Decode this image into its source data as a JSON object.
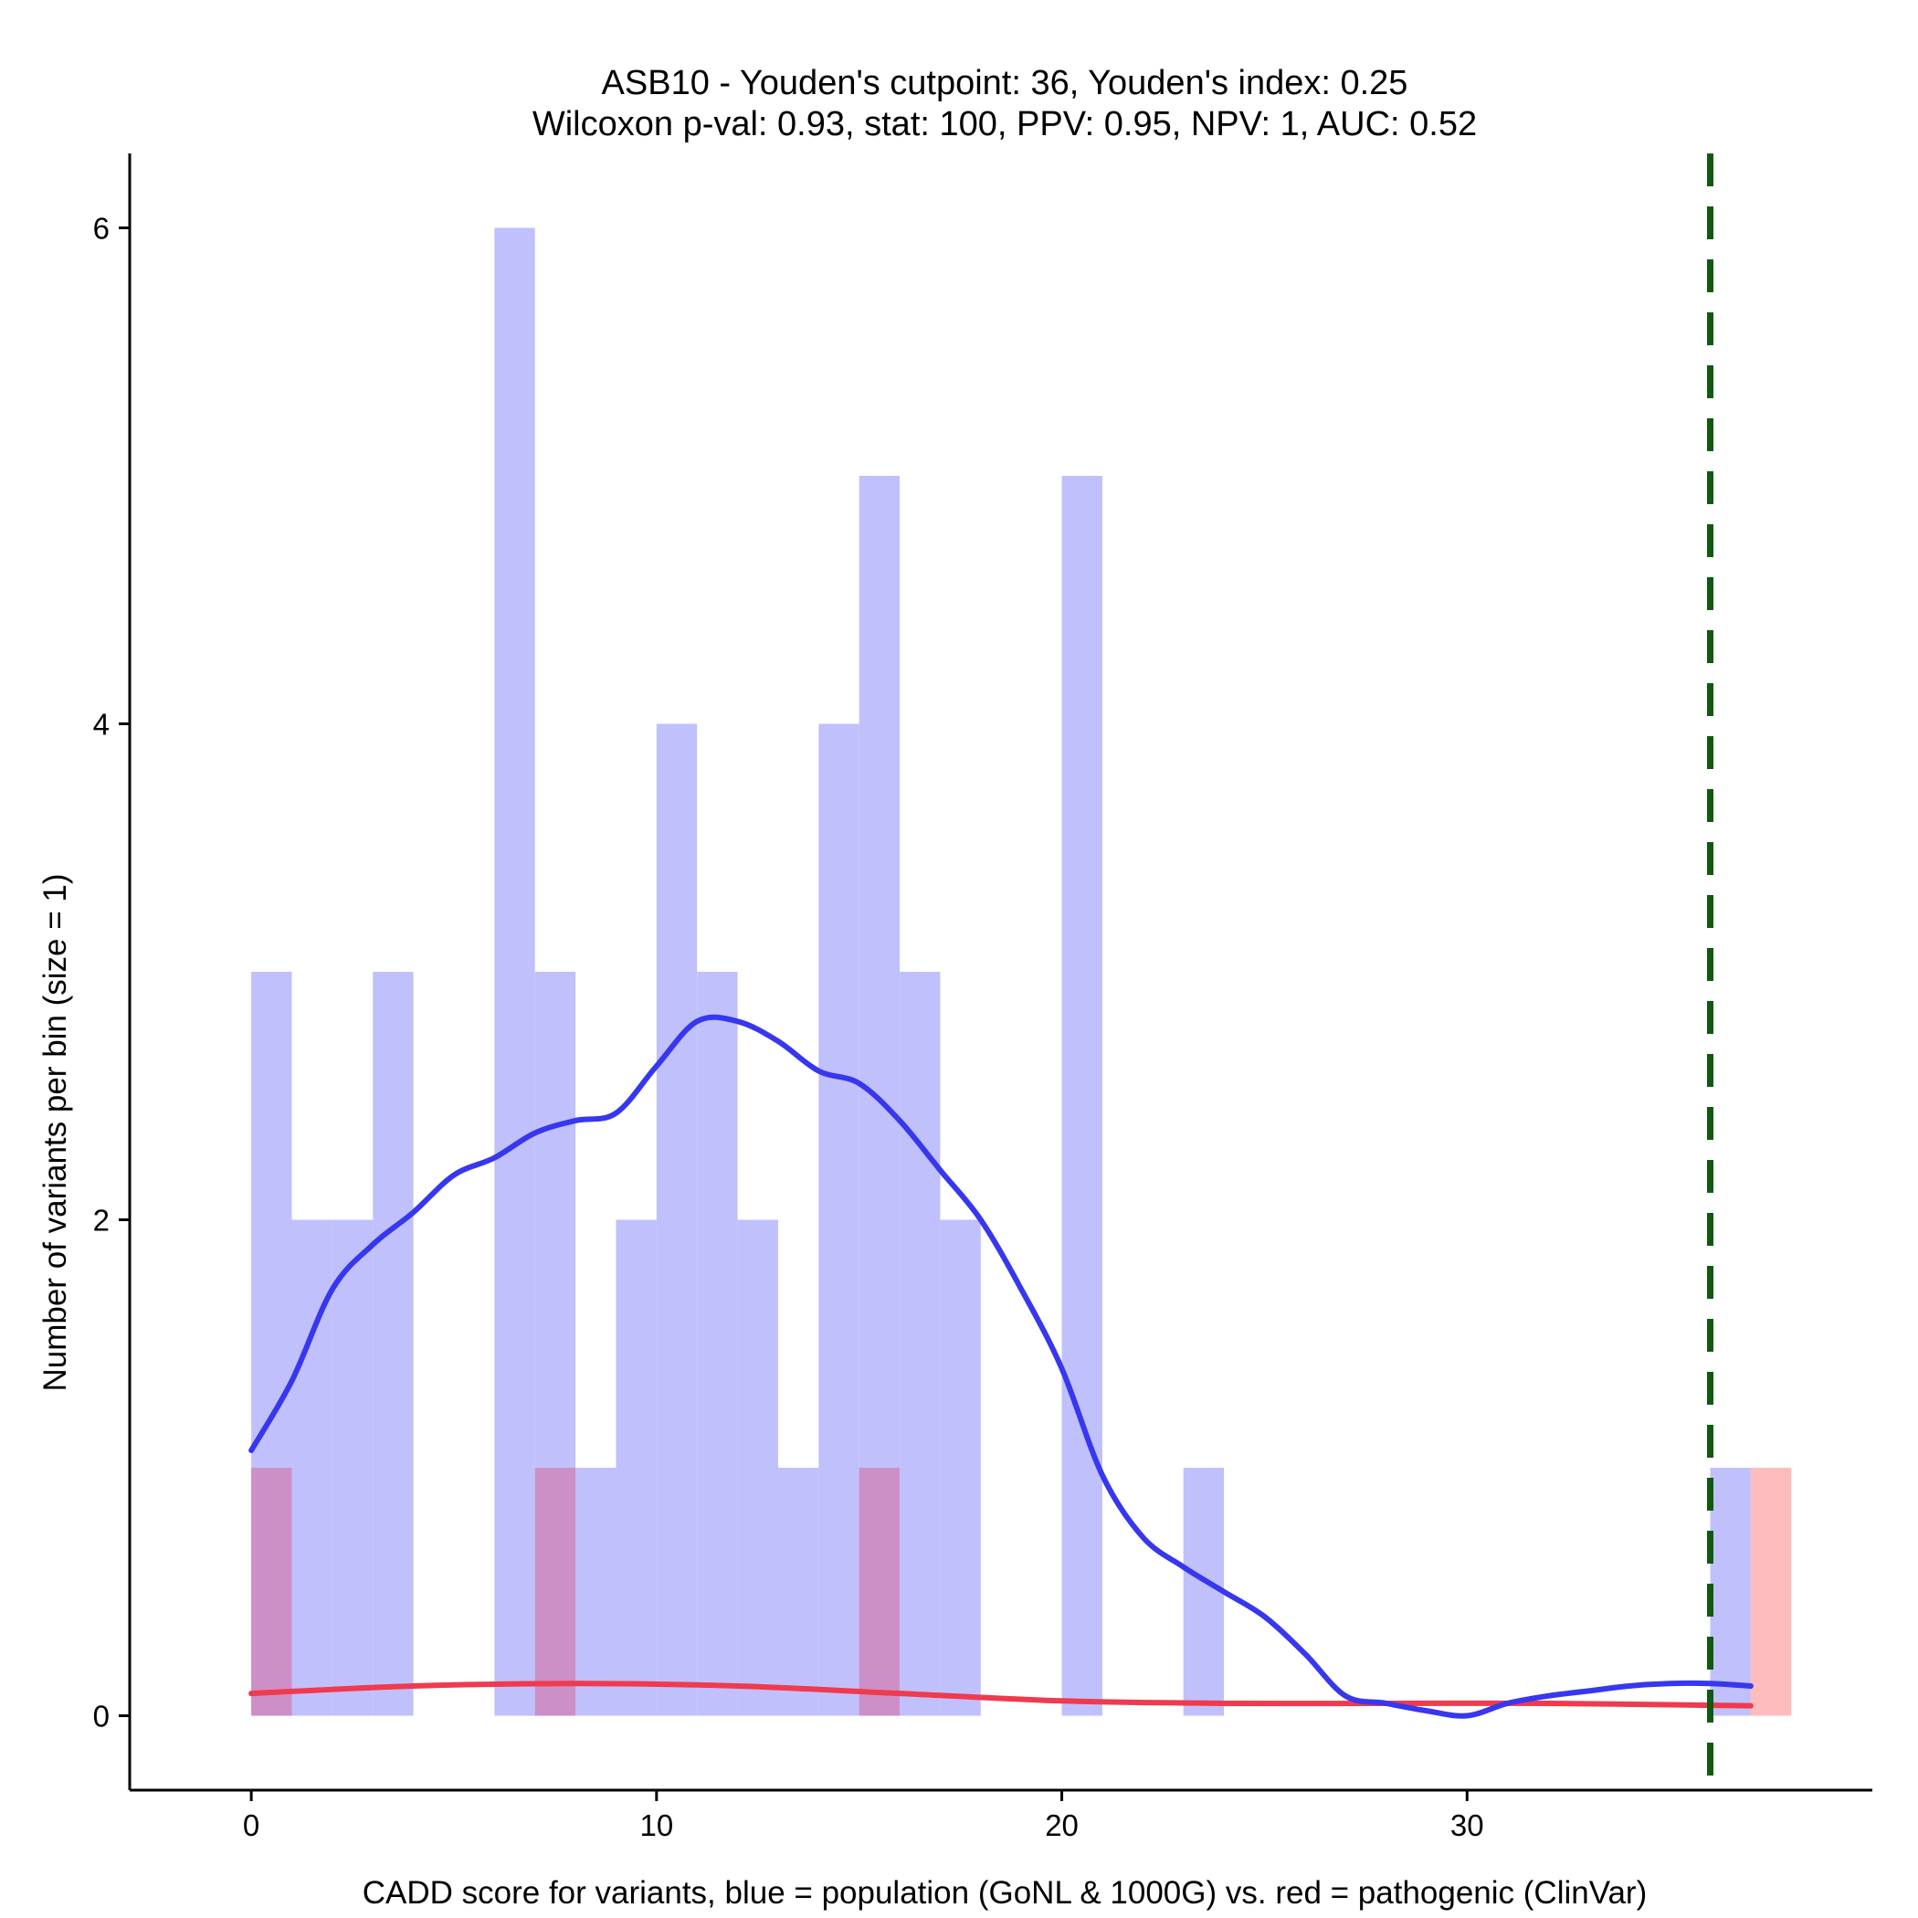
{
  "chart_data": {
    "type": "histogram",
    "title_line1": "ASB10 - Youden's cutpoint: 36, Youden's index: 0.25",
    "title_line2": "Wilcoxon p-val: 0.93, stat: 100, PPV: 0.95, NPV: 1, AUC: 0.52",
    "xlabel": "CADD score for variants, blue = population (GoNL & 1000G) vs. red = pathogenic (ClinVar)",
    "ylabel": "Number of variants per bin (size = 1)",
    "xlim": [
      -3,
      40
    ],
    "ylim": [
      -0.3,
      6.3
    ],
    "x_ticks": [
      0,
      10,
      20,
      30
    ],
    "y_ticks": [
      0,
      2,
      4,
      6
    ],
    "bin_width": 1,
    "cutpoint": 36,
    "colors": {
      "population_bar": "#c0c0fd",
      "pathogenic_bar": "#ffbcbc",
      "overlap_bar": "#cc90c6",
      "population_line": "#3737ef",
      "pathogenic_line": "#f03a4d",
      "cutpoint_line": "#0f5a0f"
    },
    "series": [
      {
        "name": "population (GoNL & 1000G)",
        "bins": [
          {
            "x": 0,
            "count": 3
          },
          {
            "x": 1,
            "count": 2
          },
          {
            "x": 2,
            "count": 2
          },
          {
            "x": 3,
            "count": 3
          },
          {
            "x": 6,
            "count": 6
          },
          {
            "x": 7,
            "count": 3
          },
          {
            "x": 8,
            "count": 1
          },
          {
            "x": 9,
            "count": 2
          },
          {
            "x": 10,
            "count": 4
          },
          {
            "x": 11,
            "count": 3
          },
          {
            "x": 12,
            "count": 2
          },
          {
            "x": 13,
            "count": 1
          },
          {
            "x": 14,
            "count": 4
          },
          {
            "x": 15,
            "count": 5
          },
          {
            "x": 16,
            "count": 3
          },
          {
            "x": 17,
            "count": 2
          },
          {
            "x": 20,
            "count": 5
          },
          {
            "x": 23,
            "count": 1
          },
          {
            "x": 36,
            "count": 1
          }
        ],
        "density_curve": [
          [
            0,
            1.07
          ],
          [
            1,
            1.35
          ],
          [
            2,
            1.72
          ],
          [
            3,
            1.9
          ],
          [
            4,
            2.03
          ],
          [
            5,
            2.18
          ],
          [
            6,
            2.25
          ],
          [
            7,
            2.35
          ],
          [
            8,
            2.4
          ],
          [
            9,
            2.43
          ],
          [
            10,
            2.62
          ],
          [
            11,
            2.8
          ],
          [
            12,
            2.8
          ],
          [
            13,
            2.72
          ],
          [
            14,
            2.6
          ],
          [
            15,
            2.55
          ],
          [
            16,
            2.4
          ],
          [
            17,
            2.2
          ],
          [
            18,
            2.0
          ],
          [
            19,
            1.72
          ],
          [
            20,
            1.4
          ],
          [
            21,
            0.97
          ],
          [
            22,
            0.72
          ],
          [
            23,
            0.6
          ],
          [
            24,
            0.5
          ],
          [
            25,
            0.4
          ],
          [
            26,
            0.25
          ],
          [
            27,
            0.08
          ],
          [
            28,
            0.05
          ],
          [
            29,
            0.02
          ],
          [
            30,
            0.0
          ],
          [
            31,
            0.05
          ],
          [
            32,
            0.08
          ],
          [
            33,
            0.1
          ],
          [
            34,
            0.12
          ],
          [
            35,
            0.13
          ],
          [
            36,
            0.13
          ],
          [
            37,
            0.12
          ]
        ]
      },
      {
        "name": "pathogenic (ClinVar)",
        "bins": [
          {
            "x": 0,
            "count": 1
          },
          {
            "x": 7,
            "count": 1
          },
          {
            "x": 15,
            "count": 1
          },
          {
            "x": 37,
            "count": 1
          }
        ],
        "density_curve": [
          [
            0,
            0.09
          ],
          [
            4,
            0.12
          ],
          [
            8,
            0.13
          ],
          [
            12,
            0.12
          ],
          [
            16,
            0.09
          ],
          [
            20,
            0.06
          ],
          [
            24,
            0.05
          ],
          [
            28,
            0.05
          ],
          [
            32,
            0.05
          ],
          [
            37,
            0.04
          ]
        ]
      }
    ]
  }
}
